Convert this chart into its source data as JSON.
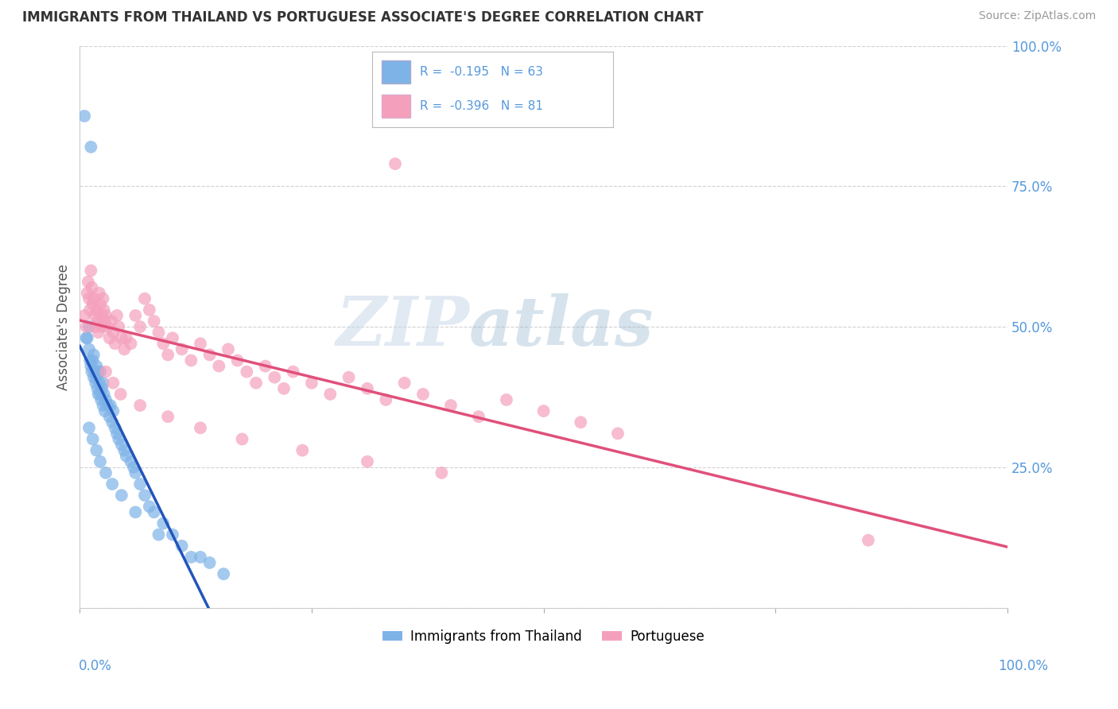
{
  "title": "IMMIGRANTS FROM THAILAND VS PORTUGUESE ASSOCIATE'S DEGREE CORRELATION CHART",
  "source": "Source: ZipAtlas.com",
  "ylabel": "Associate's Degree",
  "legend_label1": "Immigrants from Thailand",
  "legend_label2": "Portuguese",
  "r1": -0.195,
  "n1": 63,
  "r2": -0.396,
  "n2": 81,
  "color1": "#7EB3E8",
  "color2": "#F4A0BC",
  "line_color1": "#2255BB",
  "line_color2": "#E0507A",
  "line_color1_ext": "#aabbdd",
  "background": "#ffffff",
  "grid_color": "#cccccc",
  "watermark_zip": "ZIP",
  "watermark_atlas": "atlas",
  "tick_color": "#5599dd",
  "xlim": [
    0.0,
    1.0
  ],
  "ylim": [
    0.0,
    1.0
  ],
  "title_fontsize": 12,
  "source_fontsize": 10,
  "scatter1_x": [
    0.005,
    0.007,
    0.008,
    0.01,
    0.01,
    0.011,
    0.012,
    0.012,
    0.013,
    0.014,
    0.015,
    0.015,
    0.016,
    0.017,
    0.018,
    0.018,
    0.019,
    0.02,
    0.02,
    0.021,
    0.022,
    0.022,
    0.023,
    0.024,
    0.025,
    0.025,
    0.026,
    0.027,
    0.028,
    0.03,
    0.032,
    0.033,
    0.035,
    0.036,
    0.038,
    0.04,
    0.042,
    0.045,
    0.048,
    0.05,
    0.055,
    0.058,
    0.06,
    0.065,
    0.07,
    0.075,
    0.08,
    0.09,
    0.1,
    0.11,
    0.12,
    0.14,
    0.155,
    0.01,
    0.014,
    0.018,
    0.022,
    0.028,
    0.035,
    0.045,
    0.06,
    0.085,
    0.13
  ],
  "scatter1_y": [
    0.875,
    0.48,
    0.48,
    0.5,
    0.46,
    0.44,
    0.82,
    0.43,
    0.42,
    0.44,
    0.41,
    0.45,
    0.42,
    0.4,
    0.43,
    0.41,
    0.39,
    0.42,
    0.38,
    0.4,
    0.38,
    0.42,
    0.37,
    0.39,
    0.36,
    0.4,
    0.38,
    0.35,
    0.37,
    0.36,
    0.34,
    0.36,
    0.33,
    0.35,
    0.32,
    0.31,
    0.3,
    0.29,
    0.28,
    0.27,
    0.26,
    0.25,
    0.24,
    0.22,
    0.2,
    0.18,
    0.17,
    0.15,
    0.13,
    0.11,
    0.09,
    0.08,
    0.06,
    0.32,
    0.3,
    0.28,
    0.26,
    0.24,
    0.22,
    0.2,
    0.17,
    0.13,
    0.09
  ],
  "scatter2_x": [
    0.005,
    0.007,
    0.008,
    0.009,
    0.01,
    0.011,
    0.012,
    0.013,
    0.014,
    0.015,
    0.016,
    0.017,
    0.018,
    0.019,
    0.02,
    0.021,
    0.022,
    0.023,
    0.024,
    0.025,
    0.026,
    0.027,
    0.028,
    0.03,
    0.032,
    0.034,
    0.036,
    0.038,
    0.04,
    0.042,
    0.045,
    0.048,
    0.05,
    0.055,
    0.06,
    0.065,
    0.07,
    0.075,
    0.08,
    0.085,
    0.09,
    0.095,
    0.1,
    0.11,
    0.12,
    0.13,
    0.14,
    0.15,
    0.16,
    0.17,
    0.18,
    0.19,
    0.2,
    0.21,
    0.22,
    0.23,
    0.25,
    0.27,
    0.29,
    0.31,
    0.33,
    0.35,
    0.37,
    0.4,
    0.43,
    0.46,
    0.5,
    0.54,
    0.58,
    0.34,
    0.028,
    0.036,
    0.044,
    0.065,
    0.095,
    0.13,
    0.175,
    0.24,
    0.31,
    0.39,
    0.85
  ],
  "scatter2_y": [
    0.52,
    0.5,
    0.56,
    0.58,
    0.55,
    0.53,
    0.6,
    0.57,
    0.54,
    0.55,
    0.52,
    0.5,
    0.53,
    0.51,
    0.49,
    0.56,
    0.54,
    0.52,
    0.5,
    0.55,
    0.53,
    0.51,
    0.52,
    0.5,
    0.48,
    0.51,
    0.49,
    0.47,
    0.52,
    0.5,
    0.48,
    0.46,
    0.48,
    0.47,
    0.52,
    0.5,
    0.55,
    0.53,
    0.51,
    0.49,
    0.47,
    0.45,
    0.48,
    0.46,
    0.44,
    0.47,
    0.45,
    0.43,
    0.46,
    0.44,
    0.42,
    0.4,
    0.43,
    0.41,
    0.39,
    0.42,
    0.4,
    0.38,
    0.41,
    0.39,
    0.37,
    0.4,
    0.38,
    0.36,
    0.34,
    0.37,
    0.35,
    0.33,
    0.31,
    0.79,
    0.42,
    0.4,
    0.38,
    0.36,
    0.34,
    0.32,
    0.3,
    0.28,
    0.26,
    0.24,
    0.12
  ]
}
